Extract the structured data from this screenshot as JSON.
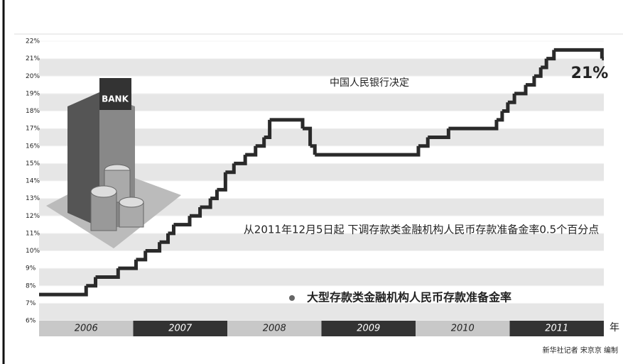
{
  "chart_data": {
    "type": "step",
    "title": "中国人民银行决定",
    "annotation": "从2011年12月5日起  下调存款类金融机构人民币存款准备金率0.5个百分点",
    "end_label": "21%",
    "x_unit": "年",
    "credit": "新华社记者 宋京京 编制",
    "illustration_label": "BANK",
    "xlim": [
      2006,
      2012
    ],
    "xticks": [
      {
        "value": 2006.5,
        "label": "2006"
      },
      {
        "value": 2007.5,
        "label": "2007"
      },
      {
        "value": 2008.5,
        "label": "2008"
      },
      {
        "value": 2009.5,
        "label": "2009"
      },
      {
        "value": 2010.5,
        "label": "2010"
      },
      {
        "value": 2011.5,
        "label": "2011"
      }
    ],
    "ylim": [
      6,
      22
    ],
    "yticks": [
      {
        "value": 6,
        "label": "6%"
      },
      {
        "value": 7,
        "label": "7%"
      },
      {
        "value": 8,
        "label": "8%"
      },
      {
        "value": 9,
        "label": "9%"
      },
      {
        "value": 10,
        "label": "10%"
      },
      {
        "value": 11,
        "label": "11%"
      },
      {
        "value": 12,
        "label": "12%"
      },
      {
        "value": 13,
        "label": "13%"
      },
      {
        "value": 14,
        "label": "14%"
      },
      {
        "value": 15,
        "label": "15%"
      },
      {
        "value": 16,
        "label": "16%"
      },
      {
        "value": 17,
        "label": "17%"
      },
      {
        "value": 18,
        "label": "18%"
      },
      {
        "value": 19,
        "label": "19%"
      },
      {
        "value": 20,
        "label": "20%"
      },
      {
        "value": 21,
        "label": "21%"
      },
      {
        "value": 22,
        "label": "22%"
      }
    ],
    "series": [
      {
        "name": "大型存款类金融机构人民币存款准备金率",
        "color": "#2a2a2a",
        "x": [
          2006,
          2006.5,
          2006.6,
          2006.84,
          2007.03,
          2007.13,
          2007.28,
          2007.37,
          2007.43,
          2007.6,
          2007.71,
          2007.82,
          2007.89,
          2007.98,
          2008.07,
          2008.19,
          2008.3,
          2008.39,
          2008.45,
          2008.8,
          2008.88,
          2008.93,
          2010.03,
          2010.13,
          2010.35,
          2010.86,
          2010.92,
          2010.98,
          2011.05,
          2011.17,
          2011.26,
          2011.33,
          2011.39,
          2011.47,
          2011.98
        ],
        "values": [
          7.5,
          8,
          8.5,
          9,
          9.5,
          10,
          10.5,
          11,
          11.5,
          12,
          12.5,
          13,
          13.5,
          14.5,
          15,
          15.5,
          16,
          16.5,
          17.5,
          17,
          16,
          15.5,
          16,
          16.5,
          17,
          17.5,
          18,
          18.5,
          19,
          19.5,
          20,
          20.5,
          21,
          21.5,
          21
        ]
      }
    ]
  }
}
